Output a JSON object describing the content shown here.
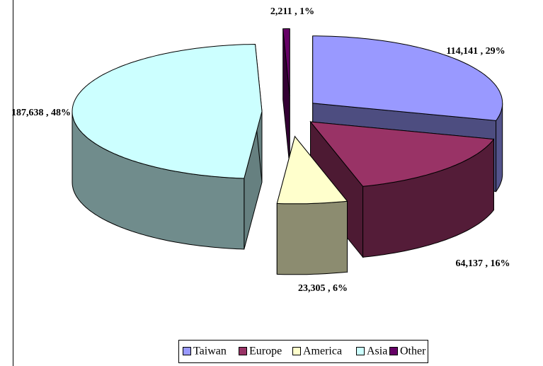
{
  "chart_data": {
    "type": "pie3d",
    "categories": [
      "Taiwan",
      "Europe",
      "America",
      "Asia",
      "Other"
    ],
    "values": [
      114141,
      64137,
      23305,
      187638,
      2211
    ],
    "value_labels": [
      "114,141 , 29%",
      "64,137 , 16%",
      "23,305 , 6%",
      "187,638 , 48%",
      "2,211 , 1%"
    ],
    "colors": [
      "#9999ff",
      "#993366",
      "#ffffcc",
      "#ccffff",
      "#660066"
    ],
    "legend": "bottom"
  }
}
